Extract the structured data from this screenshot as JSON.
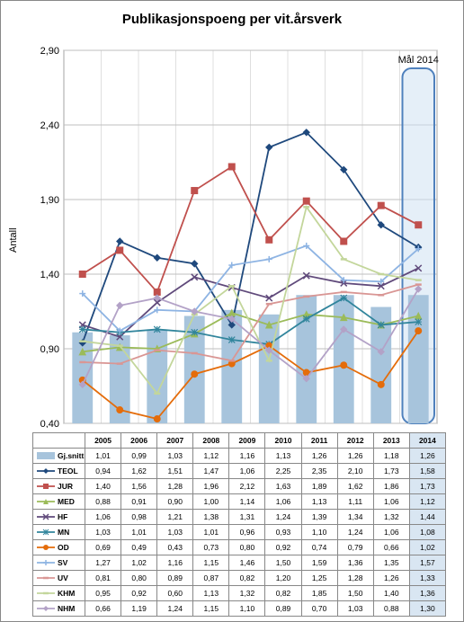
{
  "title": "Publikasjonspoeng per vit.årsverk",
  "ylabel": "Antall",
  "annotation": "Mål 2014",
  "chart": {
    "type": "line+bar",
    "xlim": [
      0,
      10
    ],
    "ylim": [
      0.4,
      2.9
    ],
    "yticks": [
      0.4,
      0.9,
      1.4,
      1.9,
      2.4,
      2.9
    ],
    "ytick_labels": [
      "0,40",
      "0,90",
      "1,40",
      "1,90",
      "2,40",
      "2,90"
    ],
    "grid_color": "#bfbfbf",
    "plot_border": "#888888",
    "bg": "#ffffff",
    "highlight_box": {
      "x": 9,
      "fill": "#cfe2f3",
      "stroke": "#4f81bd",
      "opacity": 0.55
    }
  },
  "categories": [
    "2005",
    "2006",
    "2007",
    "2008",
    "2009",
    "2010",
    "2011",
    "2012",
    "2013",
    "2014"
  ],
  "series": [
    {
      "key": "gjsnitt",
      "label": "Gj.snitt",
      "type": "bar",
      "color": "#a7c4dc",
      "marker": "bar",
      "values": [
        1.01,
        0.99,
        1.03,
        1.12,
        1.16,
        1.13,
        1.26,
        1.26,
        1.18,
        1.26
      ],
      "display": [
        "1,01",
        "0,99",
        "1,03",
        "1,12",
        "1,16",
        "1,13",
        "1,26",
        "1,26",
        "1,18",
        "1,26"
      ]
    },
    {
      "key": "teol",
      "label": "TEOL",
      "type": "line",
      "color": "#1f497d",
      "marker": "diamond",
      "values": [
        0.94,
        1.62,
        1.51,
        1.47,
        1.06,
        2.25,
        2.35,
        2.1,
        1.73,
        1.58
      ],
      "display": [
        "0,94",
        "1,62",
        "1,51",
        "1,47",
        "1,06",
        "2,25",
        "2,35",
        "2,10",
        "1,73",
        "1,58"
      ]
    },
    {
      "key": "jur",
      "label": "JUR",
      "type": "line",
      "color": "#c0504d",
      "marker": "square",
      "values": [
        1.4,
        1.56,
        1.28,
        1.96,
        2.12,
        1.63,
        1.89,
        1.62,
        1.86,
        1.73
      ],
      "display": [
        "1,40",
        "1,56",
        "1,28",
        "1,96",
        "2,12",
        "1,63",
        "1,89",
        "1,62",
        "1,86",
        "1,73"
      ]
    },
    {
      "key": "med",
      "label": "MED",
      "type": "line",
      "color": "#9bbb59",
      "marker": "triangle",
      "values": [
        0.88,
        0.91,
        0.9,
        1.0,
        1.14,
        1.06,
        1.13,
        1.11,
        1.06,
        1.12
      ],
      "display": [
        "0,88",
        "0,91",
        "0,90",
        "1,00",
        "1,14",
        "1,06",
        "1,13",
        "1,11",
        "1,06",
        "1,12"
      ]
    },
    {
      "key": "hf",
      "label": "HF",
      "type": "line",
      "color": "#604a7b",
      "marker": "x",
      "values": [
        1.06,
        0.98,
        1.21,
        1.38,
        1.31,
        1.24,
        1.39,
        1.34,
        1.32,
        1.44
      ],
      "display": [
        "1,06",
        "0,98",
        "1,21",
        "1,38",
        "1,31",
        "1,24",
        "1,39",
        "1,34",
        "1,32",
        "1,44"
      ]
    },
    {
      "key": "mn",
      "label": "MN",
      "type": "line",
      "color": "#31859c",
      "marker": "star",
      "values": [
        1.03,
        1.01,
        1.03,
        1.01,
        0.96,
        0.93,
        1.1,
        1.24,
        1.06,
        1.08
      ],
      "display": [
        "1,03",
        "1,01",
        "1,03",
        "1,01",
        "0,96",
        "0,93",
        "1,10",
        "1,24",
        "1,06",
        "1,08"
      ]
    },
    {
      "key": "od",
      "label": "OD",
      "type": "line",
      "color": "#e46c0a",
      "marker": "circle",
      "values": [
        0.69,
        0.49,
        0.43,
        0.73,
        0.8,
        0.92,
        0.74,
        0.79,
        0.66,
        1.02
      ],
      "display": [
        "0,69",
        "0,49",
        "0,43",
        "0,73",
        "0,80",
        "0,92",
        "0,74",
        "0,79",
        "0,66",
        "1,02"
      ]
    },
    {
      "key": "sv",
      "label": "SV",
      "type": "line",
      "color": "#8eb4e3",
      "marker": "plus",
      "values": [
        1.27,
        1.02,
        1.16,
        1.15,
        1.46,
        1.5,
        1.59,
        1.36,
        1.35,
        1.57
      ],
      "display": [
        "1,27",
        "1,02",
        "1,16",
        "1,15",
        "1,46",
        "1,50",
        "1,59",
        "1,36",
        "1,35",
        "1,57"
      ]
    },
    {
      "key": "uv",
      "label": "UV",
      "type": "line",
      "color": "#d99694",
      "marker": "dash",
      "values": [
        0.81,
        0.8,
        0.89,
        0.87,
        0.82,
        1.2,
        1.25,
        1.28,
        1.26,
        1.33
      ],
      "display": [
        "0,81",
        "0,80",
        "0,89",
        "0,87",
        "0,82",
        "1,20",
        "1,25",
        "1,28",
        "1,26",
        "1,33"
      ]
    },
    {
      "key": "khm",
      "label": "KHM",
      "type": "line",
      "color": "#c3d69b",
      "marker": "dash",
      "values": [
        0.95,
        0.92,
        0.6,
        1.13,
        1.32,
        0.82,
        1.85,
        1.5,
        1.4,
        1.36
      ],
      "display": [
        "0,95",
        "0,92",
        "0,60",
        "1,13",
        "1,32",
        "0,82",
        "1,85",
        "1,50",
        "1,40",
        "1,36"
      ]
    },
    {
      "key": "nhm",
      "label": "NHM",
      "type": "line",
      "color": "#b3a2c7",
      "marker": "diamond",
      "values": [
        0.66,
        1.19,
        1.24,
        1.15,
        1.1,
        0.89,
        0.7,
        1.03,
        0.88,
        1.3
      ],
      "display": [
        "0,66",
        "1,19",
        "1,24",
        "1,15",
        "1,10",
        "0,89",
        "0,70",
        "1,03",
        "0,88",
        "1,30"
      ]
    }
  ]
}
